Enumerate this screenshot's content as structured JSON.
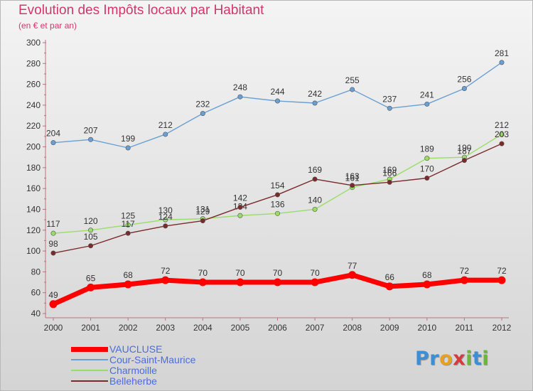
{
  "title": "Evolution des Impôts locaux par Habitant",
  "subtitle": "(en € et par an)",
  "logo": {
    "text": "Proxiti",
    "letters": [
      {
        "ch": "P",
        "color": "#3a8fd6"
      },
      {
        "ch": "r",
        "color": "#3a8fd6"
      },
      {
        "ch": "o",
        "color": "#e8a020"
      },
      {
        "ch": "x",
        "color": "#d23c3c"
      },
      {
        "ch": "i",
        "color": "#6ab83a"
      },
      {
        "ch": "t",
        "color": "#3a8fd6"
      },
      {
        "ch": "i",
        "color": "#6ab83a"
      }
    ]
  },
  "chart_data": {
    "type": "line",
    "title": "Evolution des Impôts locaux par Habitant",
    "subtitle": "(en € et par an)",
    "xlabel": "",
    "ylabel": "",
    "x": [
      "2000",
      "2001",
      "2002",
      "2003",
      "2004",
      "2005",
      "2006",
      "2007",
      "2008",
      "2009",
      "2010",
      "2011",
      "2012"
    ],
    "ylim": [
      40,
      300
    ],
    "yticks": [
      40,
      60,
      80,
      100,
      120,
      140,
      160,
      180,
      200,
      220,
      240,
      260,
      280,
      300
    ],
    "grid": false,
    "legend_position": "bottom-left",
    "series": [
      {
        "name": "VAUCLUSE",
        "color": "#ff0000",
        "values": [
          49,
          65,
          68,
          72,
          70,
          70,
          70,
          70,
          77,
          66,
          68,
          72,
          72
        ]
      },
      {
        "name": "Cour-Saint-Maurice",
        "color": "#6a9fd4",
        "values": [
          204,
          207,
          199,
          212,
          232,
          248,
          244,
          242,
          255,
          237,
          241,
          256,
          281
        ]
      },
      {
        "name": "Charmoille",
        "color": "#99dd66",
        "values": [
          117,
          120,
          125,
          130,
          131,
          134,
          136,
          140,
          161,
          169,
          189,
          190,
          212
        ]
      },
      {
        "name": "Belleherbe",
        "color": "#7a2a2a",
        "values": [
          98,
          105,
          117,
          124,
          129,
          142,
          154,
          169,
          163,
          166,
          170,
          187,
          203
        ]
      }
    ]
  }
}
